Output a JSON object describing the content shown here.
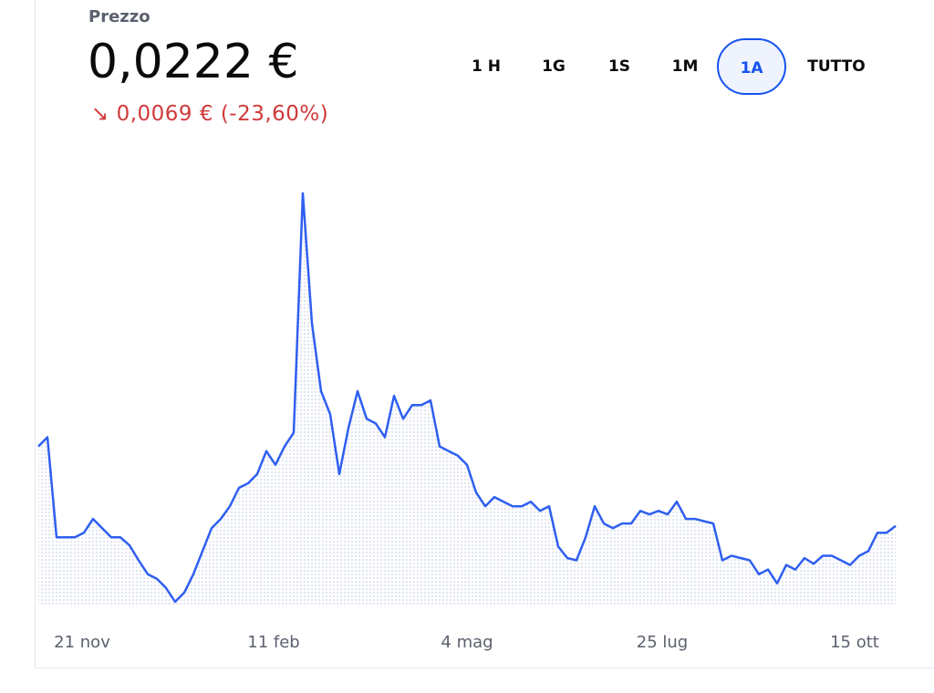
{
  "header": {
    "label": "Prezzo",
    "price": "0,0222 €",
    "change": "↘ 0,0069 € (-23,60%)"
  },
  "ranges": {
    "options": [
      "1 H",
      "1G",
      "1S",
      "1M",
      "1A",
      "TUTTO"
    ],
    "selected": "1A"
  },
  "chart_data": {
    "type": "line",
    "color": "#2f5ff0",
    "values": [
      0.0291,
      0.0299,
      0.0212,
      0.0212,
      0.0212,
      0.0216,
      0.0228,
      0.022,
      0.0212,
      0.0212,
      0.0205,
      0.0192,
      0.018,
      0.0176,
      0.0168,
      0.0156,
      0.0164,
      0.018,
      0.02,
      0.022,
      0.0228,
      0.0239,
      0.0255,
      0.0259,
      0.0267,
      0.0287,
      0.0275,
      0.0291,
      0.0303,
      0.0511,
      0.0398,
      0.0339,
      0.0319,
      0.0267,
      0.0307,
      0.0339,
      0.0315,
      0.0311,
      0.0299,
      0.0335,
      0.0315,
      0.0327,
      0.0327,
      0.0331,
      0.0291,
      0.0287,
      0.0283,
      0.0275,
      0.0251,
      0.0239,
      0.0247,
      0.0243,
      0.0239,
      0.0239,
      0.0243,
      0.0235,
      0.0239,
      0.0204,
      0.0194,
      0.0192,
      0.0212,
      0.0239,
      0.0224,
      0.022,
      0.0224,
      0.0224,
      0.0235,
      0.0232,
      0.0235,
      0.0232,
      0.0243,
      0.0228,
      0.0228,
      0.0226,
      0.0224,
      0.0192,
      0.0196,
      0.0194,
      0.0192,
      0.018,
      0.0184,
      0.0172,
      0.0188,
      0.0184,
      0.0194,
      0.0189,
      0.0196,
      0.0196,
      0.0192,
      0.0188,
      0.0196,
      0.02,
      0.0216,
      0.0216,
      0.0222
    ],
    "xlim": [
      0,
      94
    ],
    "ylim": [
      0.0152,
      0.0511
    ],
    "xticks": [
      {
        "value": 4.8,
        "label": "21 nov"
      },
      {
        "value": 25.8,
        "label": "11 feb"
      },
      {
        "value": 47,
        "label": "4 mag"
      },
      {
        "value": 68.4,
        "label": "25 lug"
      },
      {
        "value": 89.5,
        "label": "15 ott"
      }
    ]
  }
}
